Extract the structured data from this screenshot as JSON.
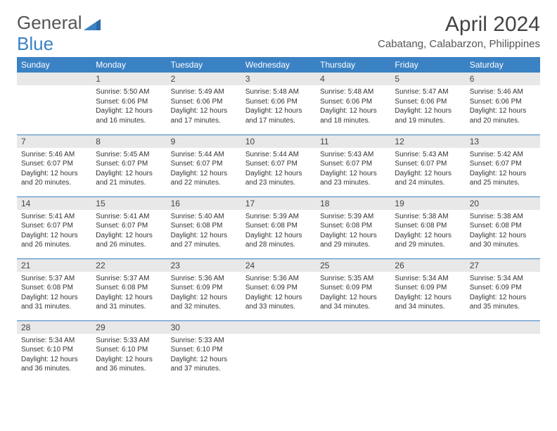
{
  "brand": {
    "part1": "General",
    "part2": "Blue"
  },
  "title": "April 2024",
  "location": "Cabatang, Calabarzon, Philippines",
  "colors": {
    "header_bg": "#3b82c4",
    "header_text": "#ffffff",
    "daynum_bg": "#e8e8e8",
    "row_divider": "#3b82c4",
    "page_bg": "#ffffff",
    "text": "#333333"
  },
  "typography": {
    "title_fontsize": 30,
    "location_fontsize": 15,
    "weekday_fontsize": 12,
    "daynum_fontsize": 12,
    "body_fontsize": 10
  },
  "weekdays": [
    "Sunday",
    "Monday",
    "Tuesday",
    "Wednesday",
    "Thursday",
    "Friday",
    "Saturday"
  ],
  "weeks": [
    [
      {
        "n": "",
        "sr": "",
        "ss": "",
        "dl": ""
      },
      {
        "n": "1",
        "sr": "Sunrise: 5:50 AM",
        "ss": "Sunset: 6:06 PM",
        "dl": "Daylight: 12 hours and 16 minutes."
      },
      {
        "n": "2",
        "sr": "Sunrise: 5:49 AM",
        "ss": "Sunset: 6:06 PM",
        "dl": "Daylight: 12 hours and 17 minutes."
      },
      {
        "n": "3",
        "sr": "Sunrise: 5:48 AM",
        "ss": "Sunset: 6:06 PM",
        "dl": "Daylight: 12 hours and 17 minutes."
      },
      {
        "n": "4",
        "sr": "Sunrise: 5:48 AM",
        "ss": "Sunset: 6:06 PM",
        "dl": "Daylight: 12 hours and 18 minutes."
      },
      {
        "n": "5",
        "sr": "Sunrise: 5:47 AM",
        "ss": "Sunset: 6:06 PM",
        "dl": "Daylight: 12 hours and 19 minutes."
      },
      {
        "n": "6",
        "sr": "Sunrise: 5:46 AM",
        "ss": "Sunset: 6:06 PM",
        "dl": "Daylight: 12 hours and 20 minutes."
      }
    ],
    [
      {
        "n": "7",
        "sr": "Sunrise: 5:46 AM",
        "ss": "Sunset: 6:07 PM",
        "dl": "Daylight: 12 hours and 20 minutes."
      },
      {
        "n": "8",
        "sr": "Sunrise: 5:45 AM",
        "ss": "Sunset: 6:07 PM",
        "dl": "Daylight: 12 hours and 21 minutes."
      },
      {
        "n": "9",
        "sr": "Sunrise: 5:44 AM",
        "ss": "Sunset: 6:07 PM",
        "dl": "Daylight: 12 hours and 22 minutes."
      },
      {
        "n": "10",
        "sr": "Sunrise: 5:44 AM",
        "ss": "Sunset: 6:07 PM",
        "dl": "Daylight: 12 hours and 23 minutes."
      },
      {
        "n": "11",
        "sr": "Sunrise: 5:43 AM",
        "ss": "Sunset: 6:07 PM",
        "dl": "Daylight: 12 hours and 23 minutes."
      },
      {
        "n": "12",
        "sr": "Sunrise: 5:43 AM",
        "ss": "Sunset: 6:07 PM",
        "dl": "Daylight: 12 hours and 24 minutes."
      },
      {
        "n": "13",
        "sr": "Sunrise: 5:42 AM",
        "ss": "Sunset: 6:07 PM",
        "dl": "Daylight: 12 hours and 25 minutes."
      }
    ],
    [
      {
        "n": "14",
        "sr": "Sunrise: 5:41 AM",
        "ss": "Sunset: 6:07 PM",
        "dl": "Daylight: 12 hours and 26 minutes."
      },
      {
        "n": "15",
        "sr": "Sunrise: 5:41 AM",
        "ss": "Sunset: 6:07 PM",
        "dl": "Daylight: 12 hours and 26 minutes."
      },
      {
        "n": "16",
        "sr": "Sunrise: 5:40 AM",
        "ss": "Sunset: 6:08 PM",
        "dl": "Daylight: 12 hours and 27 minutes."
      },
      {
        "n": "17",
        "sr": "Sunrise: 5:39 AM",
        "ss": "Sunset: 6:08 PM",
        "dl": "Daylight: 12 hours and 28 minutes."
      },
      {
        "n": "18",
        "sr": "Sunrise: 5:39 AM",
        "ss": "Sunset: 6:08 PM",
        "dl": "Daylight: 12 hours and 29 minutes."
      },
      {
        "n": "19",
        "sr": "Sunrise: 5:38 AM",
        "ss": "Sunset: 6:08 PM",
        "dl": "Daylight: 12 hours and 29 minutes."
      },
      {
        "n": "20",
        "sr": "Sunrise: 5:38 AM",
        "ss": "Sunset: 6:08 PM",
        "dl": "Daylight: 12 hours and 30 minutes."
      }
    ],
    [
      {
        "n": "21",
        "sr": "Sunrise: 5:37 AM",
        "ss": "Sunset: 6:08 PM",
        "dl": "Daylight: 12 hours and 31 minutes."
      },
      {
        "n": "22",
        "sr": "Sunrise: 5:37 AM",
        "ss": "Sunset: 6:08 PM",
        "dl": "Daylight: 12 hours and 31 minutes."
      },
      {
        "n": "23",
        "sr": "Sunrise: 5:36 AM",
        "ss": "Sunset: 6:09 PM",
        "dl": "Daylight: 12 hours and 32 minutes."
      },
      {
        "n": "24",
        "sr": "Sunrise: 5:36 AM",
        "ss": "Sunset: 6:09 PM",
        "dl": "Daylight: 12 hours and 33 minutes."
      },
      {
        "n": "25",
        "sr": "Sunrise: 5:35 AM",
        "ss": "Sunset: 6:09 PM",
        "dl": "Daylight: 12 hours and 34 minutes."
      },
      {
        "n": "26",
        "sr": "Sunrise: 5:34 AM",
        "ss": "Sunset: 6:09 PM",
        "dl": "Daylight: 12 hours and 34 minutes."
      },
      {
        "n": "27",
        "sr": "Sunrise: 5:34 AM",
        "ss": "Sunset: 6:09 PM",
        "dl": "Daylight: 12 hours and 35 minutes."
      }
    ],
    [
      {
        "n": "28",
        "sr": "Sunrise: 5:34 AM",
        "ss": "Sunset: 6:10 PM",
        "dl": "Daylight: 12 hours and 36 minutes."
      },
      {
        "n": "29",
        "sr": "Sunrise: 5:33 AM",
        "ss": "Sunset: 6:10 PM",
        "dl": "Daylight: 12 hours and 36 minutes."
      },
      {
        "n": "30",
        "sr": "Sunrise: 5:33 AM",
        "ss": "Sunset: 6:10 PM",
        "dl": "Daylight: 12 hours and 37 minutes."
      },
      {
        "n": "",
        "sr": "",
        "ss": "",
        "dl": ""
      },
      {
        "n": "",
        "sr": "",
        "ss": "",
        "dl": ""
      },
      {
        "n": "",
        "sr": "",
        "ss": "",
        "dl": ""
      },
      {
        "n": "",
        "sr": "",
        "ss": "",
        "dl": ""
      }
    ]
  ]
}
